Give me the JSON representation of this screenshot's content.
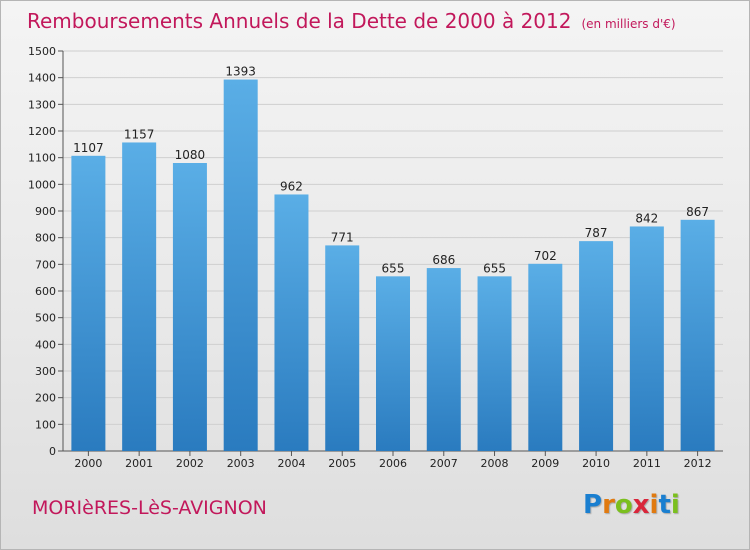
{
  "header": {
    "title": "Remboursements Annuels de la Dette de 2000 à 2012",
    "unit_note": "(en milliers d'€)"
  },
  "footer": {
    "commune": "MORIèRES-LèS-AVIGNON",
    "brand": "Proxiti"
  },
  "colors": {
    "title": "#c2185b",
    "bar_top": "#5aaee6",
    "bar_bottom": "#2a7bbf"
  },
  "chart_data": {
    "type": "bar",
    "title": "Remboursements Annuels de la Dette de 2000 à 2012",
    "subtitle": "(en milliers d'€)",
    "xlabel": "",
    "ylabel": "",
    "categories": [
      "2000",
      "2001",
      "2002",
      "2003",
      "2004",
      "2005",
      "2006",
      "2007",
      "2008",
      "2009",
      "2010",
      "2011",
      "2012"
    ],
    "values": [
      1107,
      1157,
      1080,
      1393,
      962,
      771,
      655,
      686,
      655,
      702,
      787,
      842,
      867
    ],
    "ylim": [
      0,
      1500
    ],
    "yticks": [
      0,
      100,
      200,
      300,
      400,
      500,
      600,
      700,
      800,
      900,
      1000,
      1100,
      1200,
      1300,
      1400,
      1500
    ],
    "grid": true,
    "data_labels": true
  }
}
